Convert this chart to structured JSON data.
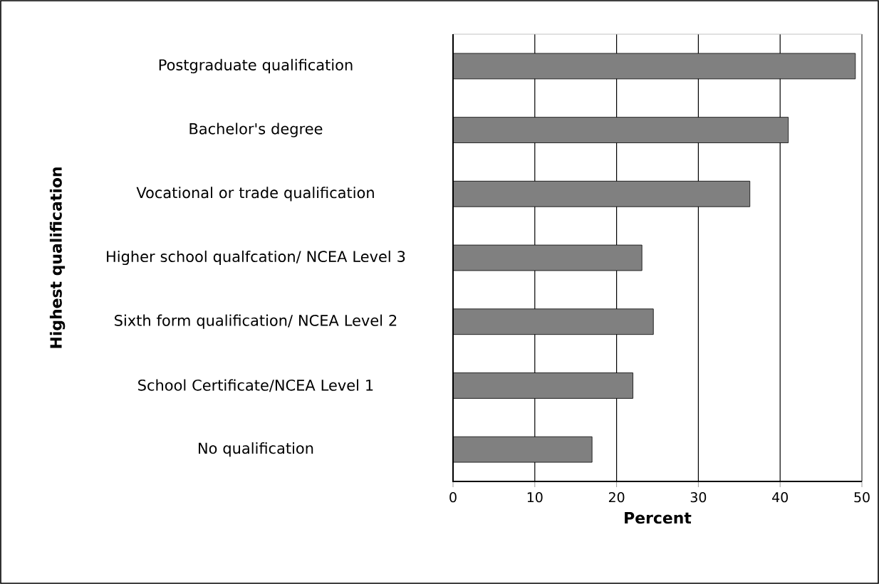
{
  "chart_data": {
    "type": "bar",
    "orientation": "horizontal",
    "xlabel": "Percent",
    "ylabel": "Highest qualification",
    "categories": [
      "Postgraduate qualification",
      "Bachelor's degree",
      "Vocational or trade qualification",
      "Higher school qualfcation/ NCEA Level 3",
      "Sixth form qualification/ NCEA Level 2",
      "School Certificate/NCEA Level 1",
      "No qualification"
    ],
    "values": [
      49.2,
      41.0,
      36.3,
      23.1,
      24.5,
      22.0,
      17.0
    ],
    "color": "#808080",
    "xlim": [
      0,
      50
    ],
    "xticks": [
      0,
      10,
      20,
      30,
      40,
      50
    ],
    "grid": "x"
  }
}
